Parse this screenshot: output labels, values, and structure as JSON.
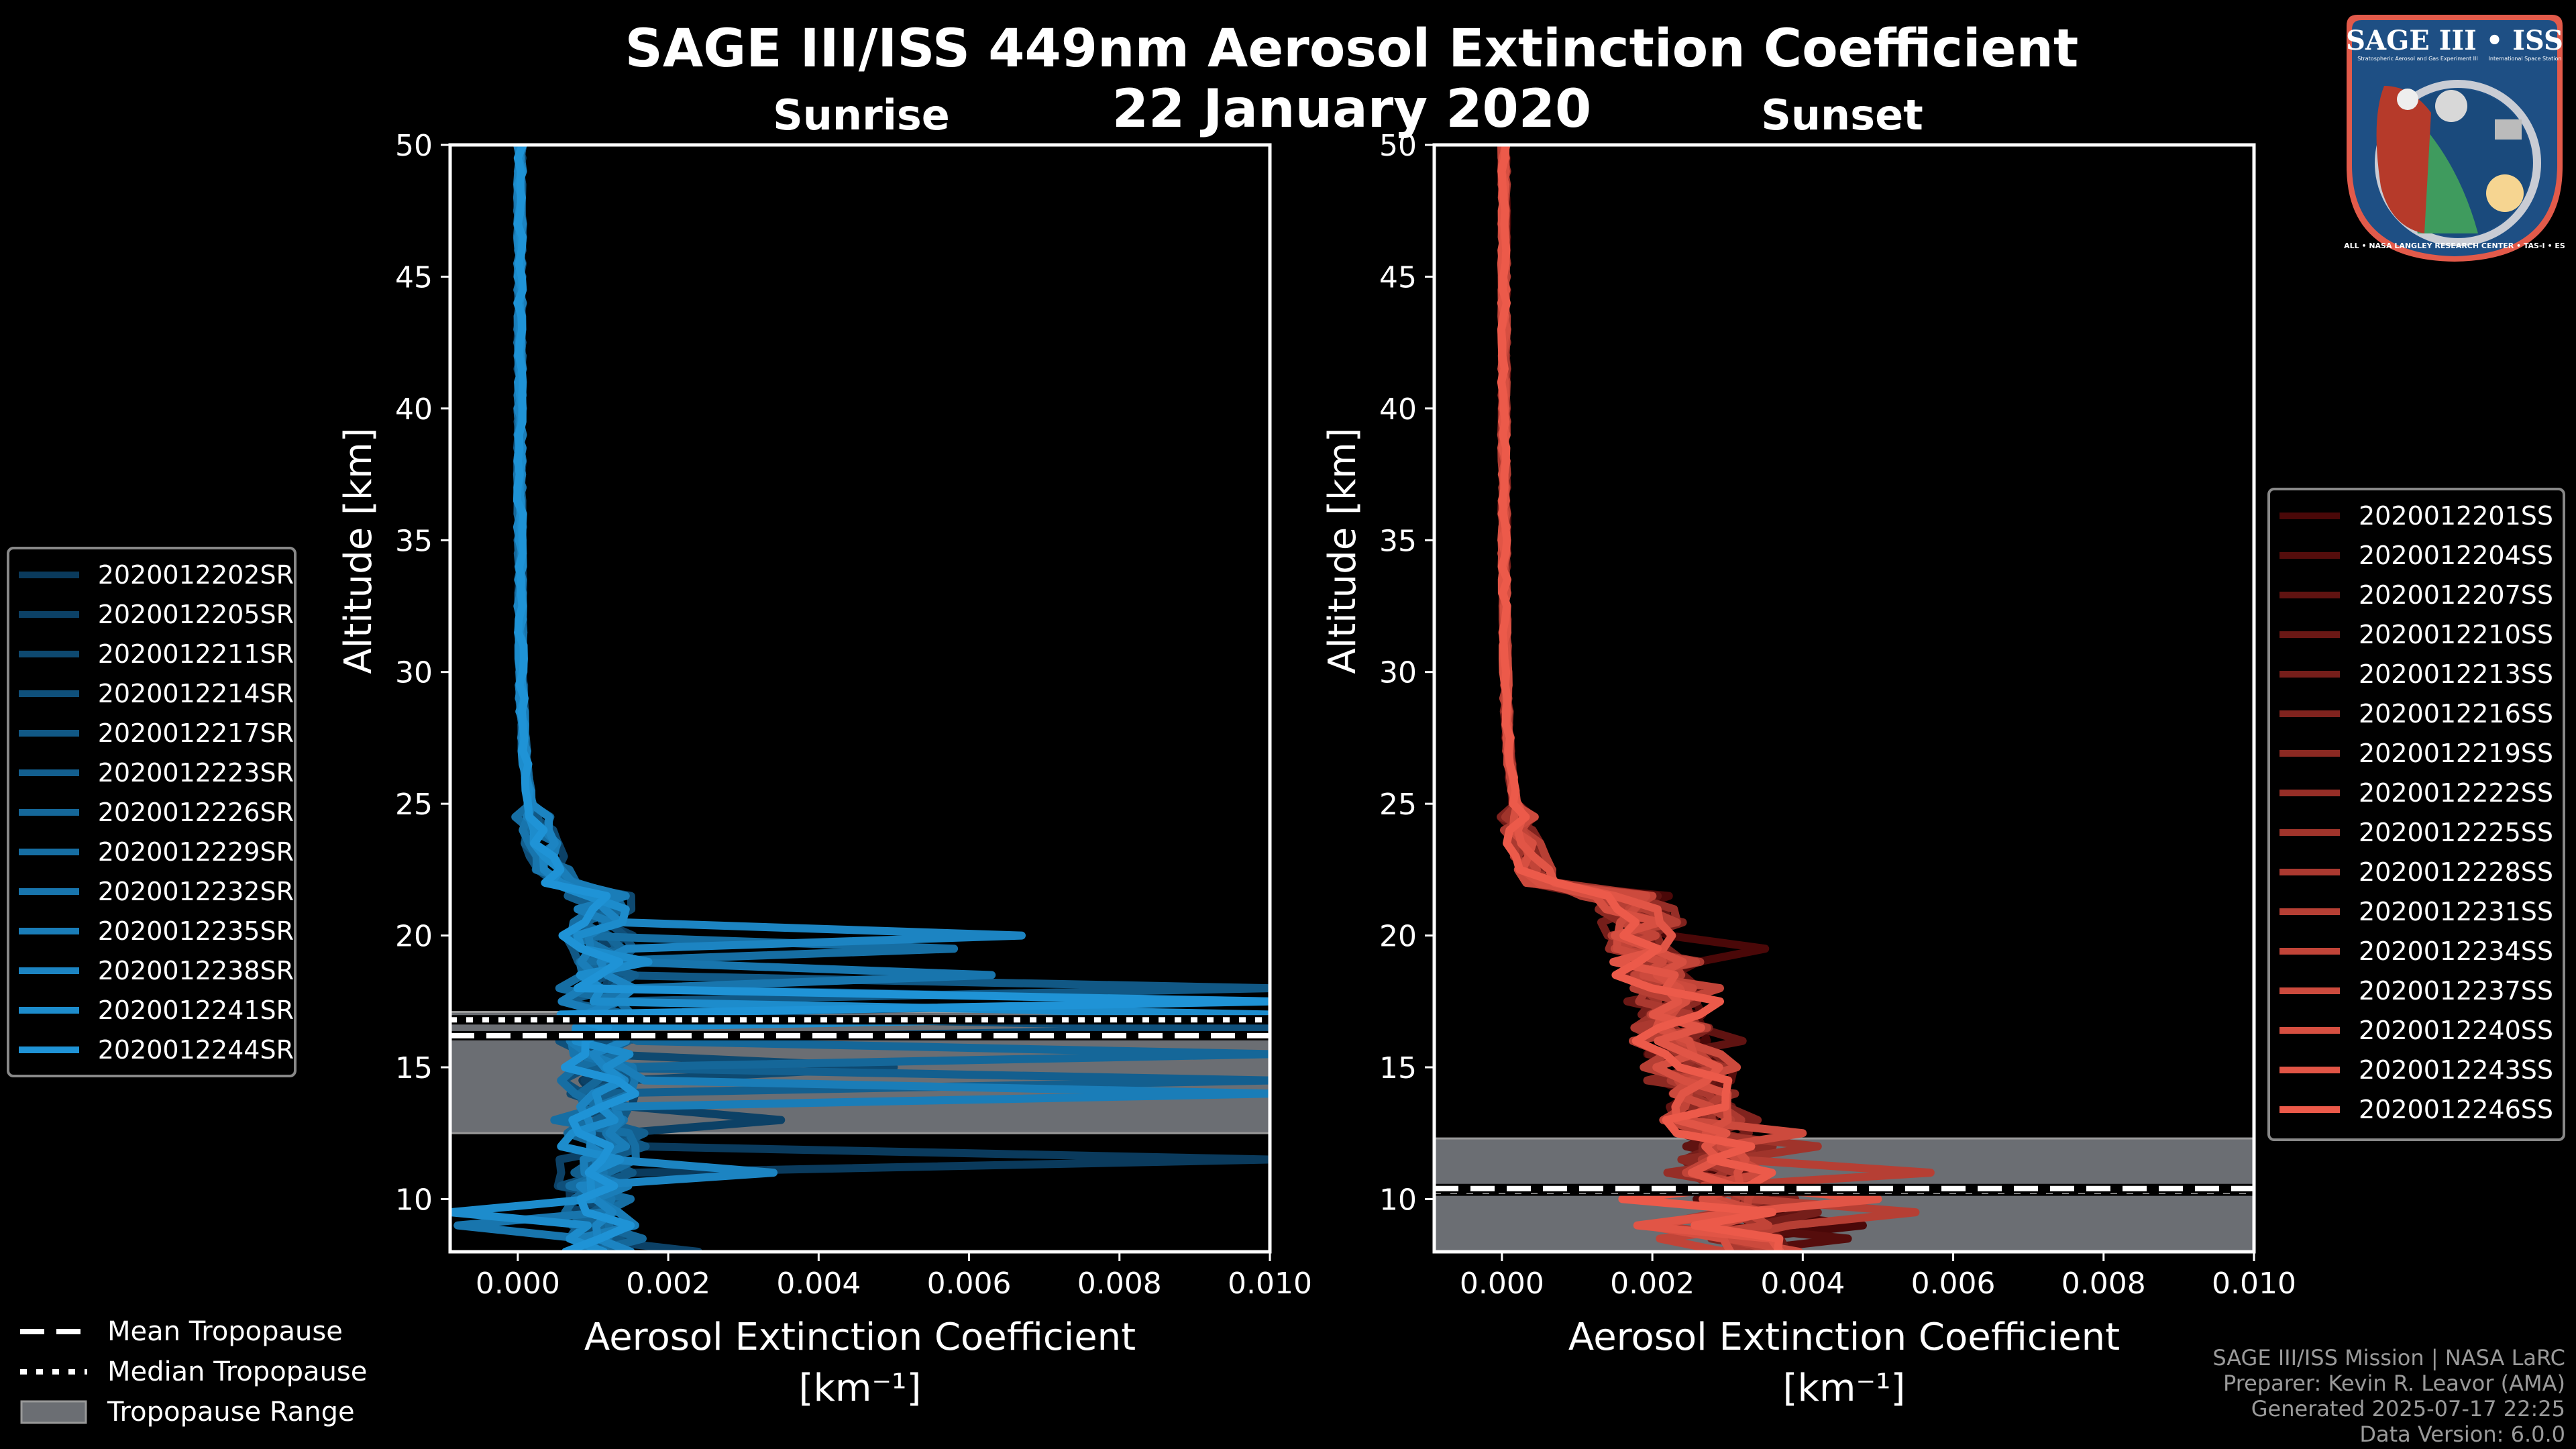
{
  "header": {
    "title": "SAGE III/ISS 449nm Aerosol Extinction Coefficient",
    "date": "22 January 2020",
    "subtitle_left": "Sunrise",
    "subtitle_right": "Sunset"
  },
  "logo": {
    "title": "SAGE III • ISS",
    "line1": "Stratospheric Aerosol and Gas Experiment III",
    "line2": "International Space Station",
    "ring_text": "BALL • NASA LANGLEY RESEARCH CENTER • TAS-I • ESA"
  },
  "tropopause_legend": {
    "mean": "Mean Tropopause",
    "median": "Median Tropopause",
    "range": "Tropopause Range"
  },
  "footer": {
    "line1": "SAGE III/ISS Mission | NASA LaRC",
    "line2": "Preparer: Kevin R. Leavor (AMA)",
    "line3": "Generated 2025-07-17 22:25",
    "line4": "Data Version: 6.0.0"
  },
  "colors": {
    "sunrise_dark": "#0a3a5c",
    "sunrise_light": "#1f93d6",
    "sunset_dark": "#4a0808",
    "sunset_light": "#ec5a4a",
    "tropopause_range": "#6b6e73",
    "background": "#000000"
  },
  "chart_data": [
    {
      "type": "line",
      "title": "Sunrise",
      "xlabel": "Aerosol Extinction Coefficient",
      "xlabel_unit": "[km⁻¹]",
      "ylabel": "Altitude [km]",
      "xlim": [
        -0.0009,
        0.01
      ],
      "ylim": [
        8,
        50
      ],
      "xticks": [
        "0.000",
        "0.002",
        "0.004",
        "0.006",
        "0.008",
        "0.010"
      ],
      "xtick_values": [
        0,
        0.002,
        0.004,
        0.006,
        0.008,
        0.01
      ],
      "yticks": [
        10,
        15,
        20,
        25,
        30,
        35,
        40,
        45,
        50
      ],
      "grid": false,
      "legend_position": "left-outside",
      "tropopause": {
        "mean": 16.2,
        "median": 16.8,
        "range": [
          12.5,
          17.1
        ]
      },
      "series": [
        {
          "name": "2020012202SR",
          "peak": [
            0.01,
            17.6
          ],
          "low": [
            0.01,
            11.6
          ]
        },
        {
          "name": "2020012205SR",
          "peak": [
            0.0035,
            13.2
          ],
          "low": [
            0.0024,
            8.2
          ]
        },
        {
          "name": "2020012211SR",
          "peak": [
            0.005,
            15.0
          ],
          "low": [
            0.0011,
            12.7
          ]
        },
        {
          "name": "2020012214SR",
          "peak": [
            0.01,
            16.3
          ],
          "low": [
            0.0012,
            9.5
          ]
        },
        {
          "name": "2020012217SR",
          "peak": [
            0.01,
            17.9
          ],
          "low": [
            0.0017,
            11.8
          ]
        },
        {
          "name": "2020012223SR",
          "peak": [
            0.01,
            14.4
          ],
          "low": [
            0.0008,
            9.0
          ]
        },
        {
          "name": "2020012226SR",
          "peak": [
            0.01,
            15.4
          ],
          "low": [
            0.001,
            10.6
          ]
        },
        {
          "name": "2020012229SR",
          "peak": [
            0.0058,
            19.5
          ],
          "low": [
            0.0015,
            9.8
          ]
        },
        {
          "name": "2020012232SR",
          "peak": [
            0.0063,
            18.3
          ],
          "low": [
            -0.0008,
            8.8
          ]
        },
        {
          "name": "2020012235SR",
          "peak": [
            0.01,
            13.8
          ],
          "low": [
            0.0008,
            8.3
          ]
        },
        {
          "name": "2020012238SR",
          "peak": [
            0.0067,
            20.0
          ],
          "low": [
            0.0034,
            11.1
          ]
        },
        {
          "name": "2020012241SR",
          "peak": [
            0.01,
            16.9
          ],
          "low": [
            -0.0009,
            9.5
          ]
        },
        {
          "name": "2020012244SR",
          "peak": [
            0.01,
            17.3
          ],
          "low": [
            0.0015,
            9.1
          ]
        }
      ]
    },
    {
      "type": "line",
      "title": "Sunset",
      "xlabel": "Aerosol Extinction Coefficient",
      "xlabel_unit": "[km⁻¹]",
      "ylabel": "Altitude [km]",
      "xlim": [
        -0.0009,
        0.01
      ],
      "ylim": [
        8,
        50
      ],
      "xticks": [
        "0.000",
        "0.002",
        "0.004",
        "0.006",
        "0.008",
        "0.010"
      ],
      "xtick_values": [
        0,
        0.002,
        0.004,
        0.006,
        0.008,
        0.01
      ],
      "yticks": [
        10,
        15,
        20,
        25,
        30,
        35,
        40,
        45,
        50
      ],
      "grid": false,
      "legend_position": "right-outside",
      "tropopause": {
        "mean": 10.4,
        "median": 10.3,
        "range": [
          8,
          12.3
        ]
      },
      "series": [
        {
          "name": "2020012201SS",
          "peak": [
            0.0035,
            19.5
          ],
          "low": [
            0.0048,
            8.9
          ]
        },
        {
          "name": "2020012204SS",
          "peak": [
            0.0026,
            18.9
          ],
          "low": [
            0.0046,
            8.4
          ]
        },
        {
          "name": "2020012207SS",
          "peak": [
            0.0032,
            16.0
          ],
          "low": [
            0.004,
            9.3
          ]
        },
        {
          "name": "2020012210SS",
          "peak": [
            0.0028,
            14.5
          ],
          "low": [
            0.0037,
            8.6
          ]
        },
        {
          "name": "2020012213SS",
          "peak": [
            0.003,
            13.5
          ],
          "low": [
            0.0042,
            9.6
          ]
        },
        {
          "name": "2020012216SS",
          "peak": [
            0.0034,
            12.8
          ],
          "low": [
            0.0039,
            10.2
          ]
        },
        {
          "name": "2020012219SS",
          "peak": [
            0.0031,
            14.1
          ],
          "low": [
            0.0036,
            11.8
          ]
        },
        {
          "name": "2020012222SS",
          "peak": [
            0.0025,
            16.8
          ],
          "low": [
            0.0022,
            11.1
          ]
        },
        {
          "name": "2020012225SS",
          "peak": [
            0.0042,
            12.2
          ],
          "low": [
            0.0033,
            9.9
          ]
        },
        {
          "name": "2020012228SS",
          "peak": [
            0.0028,
            15.0
          ],
          "low": [
            0.002,
            9.0
          ]
        },
        {
          "name": "2020012231SS",
          "peak": [
            0.0057,
            11.0
          ],
          "low": [
            0.0055,
            9.7
          ]
        },
        {
          "name": "2020012234SS",
          "peak": [
            0.0029,
            18.0
          ],
          "low": [
            0.0021,
            8.4
          ]
        },
        {
          "name": "2020012237SS",
          "peak": [
            0.004,
            12.5
          ],
          "low": [
            0.0035,
            10.9
          ]
        },
        {
          "name": "2020012240SS",
          "peak": [
            0.003,
            13.8
          ],
          "low": [
            0.0019,
            9.2
          ]
        },
        {
          "name": "2020012243SS",
          "peak": [
            0.005,
            10.0
          ],
          "low": [
            0.0018,
            8.8
          ]
        },
        {
          "name": "2020012246SS",
          "peak": [
            0.0029,
            17.5
          ],
          "low": [
            0.0016,
            9.9
          ]
        }
      ]
    }
  ]
}
